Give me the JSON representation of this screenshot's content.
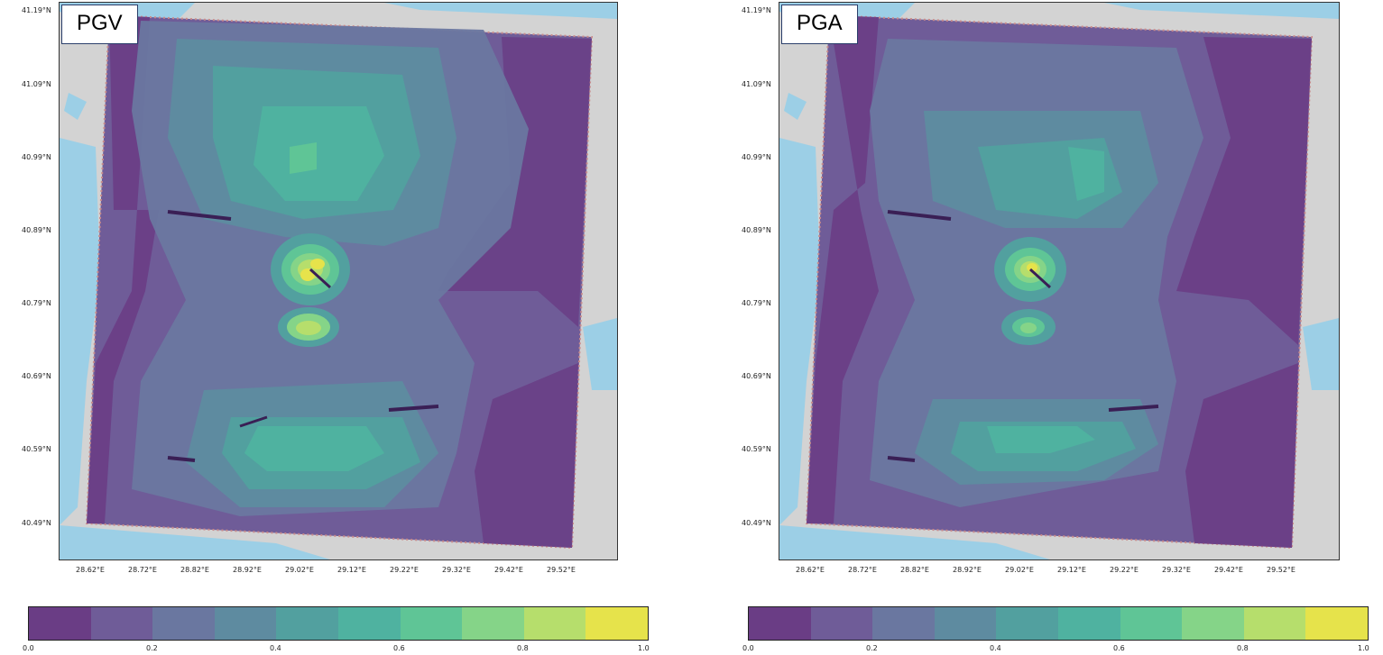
{
  "panels": [
    {
      "title": "PGV",
      "lat_labels": [
        "41.19°N",
        "41.09°N",
        "40.99°N",
        "40.89°N",
        "40.79°N",
        "40.69°N",
        "40.59°N",
        "40.49°N"
      ],
      "lon_labels": [
        "28.62°E",
        "28.72°E",
        "28.82°E",
        "28.92°E",
        "29.02°E",
        "29.12°E",
        "29.22°E",
        "29.32°E",
        "29.42°E",
        "29.52°E"
      ],
      "colorbar_ticks": [
        "0.0",
        "0.2",
        "0.4",
        "0.6",
        "0.8",
        "1.0"
      ]
    },
    {
      "title": "PGA",
      "lat_labels": [
        "41.19°N",
        "41.09°N",
        "40.99°N",
        "40.89°N",
        "40.79°N",
        "40.69°N",
        "40.59°N",
        "40.49°N"
      ],
      "lon_labels": [
        "28.62°E",
        "28.72°E",
        "28.82°E",
        "28.92°E",
        "29.02°E",
        "29.12°E",
        "29.22°E",
        "29.32°E",
        "29.42°E",
        "29.52°E"
      ],
      "colorbar_ticks": [
        "0.0",
        "0.2",
        "0.4",
        "0.6",
        "0.8",
        "1.0"
      ]
    }
  ],
  "colors": {
    "levels": [
      "#6a3d85",
      "#6f5c98",
      "#6a77a0",
      "#5e8ba0",
      "#52a09f",
      "#4fb2a0",
      "#5fc596",
      "#85d488",
      "#b6de6c",
      "#e6e34b"
    ],
    "land": "#d3d3d3",
    "sea": "#9ccfe6"
  }
}
